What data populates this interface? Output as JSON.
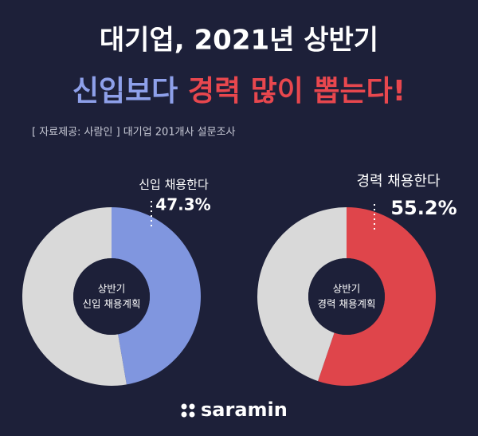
{
  "header": {
    "title": "대기업, 2021년 상반기",
    "subtitle_a": "신입보다",
    "subtitle_b": "경력 많이 뽑는다!",
    "source": "[ 자료제공: 사람인 ] 대기업 201개사 설문조사"
  },
  "chart_data": [
    {
      "type": "donut",
      "center_label": [
        "상반기",
        "신입 채용계획"
      ],
      "categories": [
        "신입 채용한다",
        null
      ],
      "values": [
        47.3,
        52.7
      ],
      "value_labels": [
        "47.3%",
        null
      ],
      "colors": [
        "#8096df",
        "#d9d9d9"
      ]
    },
    {
      "type": "donut",
      "center_label": [
        "상반기",
        "경력 채용계획"
      ],
      "categories": [
        "경력 채용한다",
        null
      ],
      "values": [
        55.2,
        44.8
      ],
      "value_labels": [
        "55.2%",
        null
      ],
      "colors": [
        "#df454b",
        "#d9d9d9"
      ]
    }
  ],
  "footer": {
    "logo": "saramin"
  }
}
